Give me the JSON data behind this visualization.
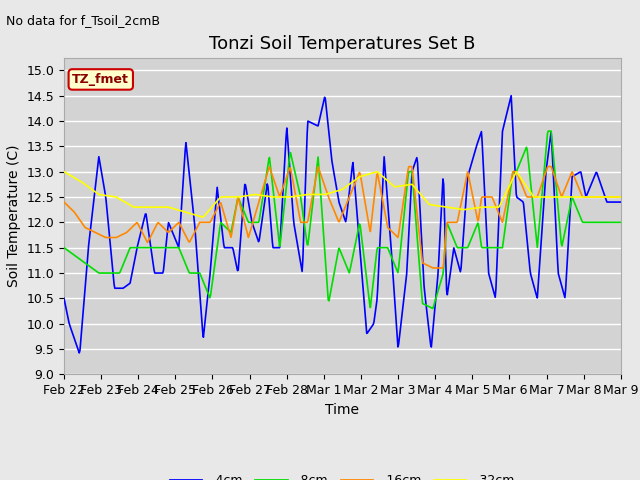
{
  "title": "Tonzi Soil Temperatures Set B",
  "subtitle": "No data for f_Tsoil_2cmB",
  "xlabel": "Time",
  "ylabel": "Soil Temperature (C)",
  "ylim": [
    9.0,
    15.25
  ],
  "yticks": [
    9.0,
    9.5,
    10.0,
    10.5,
    11.0,
    11.5,
    12.0,
    12.5,
    13.0,
    13.5,
    14.0,
    14.5,
    15.0
  ],
  "xtick_labels": [
    "Feb 22",
    "Feb 23",
    "Feb 24",
    "Feb 25",
    "Feb 26",
    "Feb 27",
    "Feb 28",
    "Mar 1",
    "Mar 2",
    "Mar 3",
    "Mar 4",
    "Mar 5",
    "Mar 6",
    "Mar 7",
    "Mar 8",
    "Mar 9"
  ],
  "colors": {
    "-4cm": "#0000ff",
    "-8cm": "#00dd00",
    "-16cm": "#ff8800",
    "-32cm": "#ffff00"
  },
  "legend_label": "TZ_fmet",
  "legend_box_color": "#ffffcc",
  "legend_box_edge_color": "#cc0000",
  "figure_bg_color": "#e8e8e8",
  "plot_bg_color": "#d3d3d3",
  "grid_color": "#ffffff",
  "title_fontsize": 13,
  "axis_label_fontsize": 10,
  "tick_fontsize": 9,
  "subtitle_fontsize": 9,
  "legend_fontsize": 9
}
